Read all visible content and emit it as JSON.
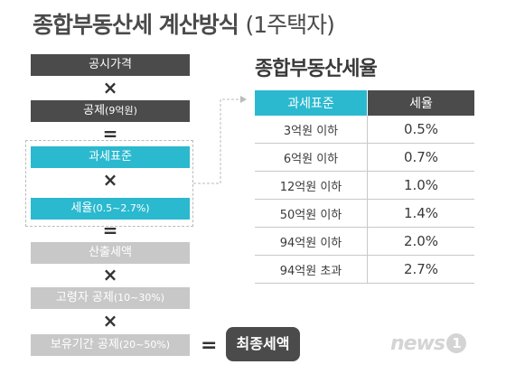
{
  "title": {
    "main": "종합부동산세 계산방식",
    "sub": "(1주택자)"
  },
  "flow": {
    "price": "공시가격",
    "deduction": "공제",
    "deduction_note": "(9억원)",
    "tax_base": "과세표준",
    "rate": "세율",
    "rate_note": "(0.5~2.7%)",
    "calculated_tax": "산출세액",
    "elderly_deduction": "고령자 공제",
    "elderly_note": "(10~30%)",
    "holding_deduction": "보유기간 공제",
    "holding_note": "(20~50%)",
    "final_tax": "최종세액",
    "op_multiply": "×",
    "op_equals": "="
  },
  "rates": {
    "title": "종합부동산세율",
    "headers": [
      "과세표준",
      "세율"
    ],
    "rows": [
      {
        "base": "3억원 이하",
        "rate": "0.5%"
      },
      {
        "base": "6억원 이하",
        "rate": "0.7%"
      },
      {
        "base": "12억원 이하",
        "rate": "1.0%"
      },
      {
        "base": "50억원 이하",
        "rate": "1.4%"
      },
      {
        "base": "94억원 이하",
        "rate": "2.0%"
      },
      {
        "base": "94억원 초과",
        "rate": "2.7%"
      }
    ]
  },
  "logo": {
    "text": "news",
    "mark": "1"
  },
  "colors": {
    "dark": "#4b4b4b",
    "accent": "#2ab9cf",
    "light": "#c8c8c8"
  }
}
